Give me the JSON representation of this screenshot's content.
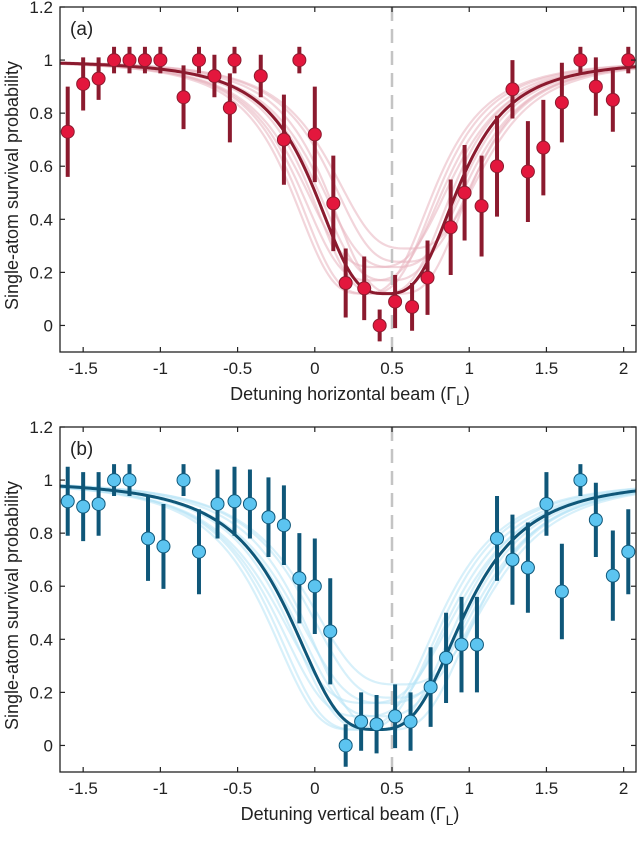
{
  "chart_data": [
    {
      "type": "scatter",
      "panel_label": "(a)",
      "xlabel": "Detuning horizontal beam (",
      "xlabel_symbol": "Γ",
      "xlabel_sub": "L",
      "xlabel_close": ")",
      "ylabel": "Single-atom survival probability",
      "xlim": [
        -1.65,
        2.08
      ],
      "ylim": [
        -0.1,
        1.2
      ],
      "xticks": [
        -1.5,
        -1,
        -0.5,
        0,
        0.5,
        1,
        1.5,
        2
      ],
      "xtick_labels": [
        "-1.5",
        "-1",
        "-0.5",
        "0",
        "0.5",
        "1",
        "1.5",
        "2"
      ],
      "yticks": [
        0,
        0.2,
        0.4,
        0.6,
        0.8,
        1,
        1.2
      ],
      "ytick_labels": [
        "0",
        "0.2",
        "0.4",
        "0.6",
        "0.8",
        "1",
        "1.2"
      ],
      "vline_x": 0.5,
      "colors": {
        "line": "#8b1a2e",
        "marker": "#e3173d",
        "marker_edge": "#8b1a2e",
        "band": "#e8b3bd"
      },
      "fit": {
        "model": "lorentzian-like dip",
        "center": 0.46,
        "width": 0.5,
        "floor": 0.12,
        "top": 1.0,
        "power": 3
      },
      "points": [
        {
          "x": -1.6,
          "y": 0.73,
          "err": 0.17
        },
        {
          "x": -1.5,
          "y": 0.91,
          "err": 0.1
        },
        {
          "x": -1.4,
          "y": 0.93,
          "err": 0.08
        },
        {
          "x": -1.3,
          "y": 1.0,
          "err": 0.05
        },
        {
          "x": -1.2,
          "y": 1.0,
          "err": 0.05
        },
        {
          "x": -1.1,
          "y": 1.0,
          "err": 0.05
        },
        {
          "x": -1.0,
          "y": 1.0,
          "err": 0.05
        },
        {
          "x": -0.85,
          "y": 0.86,
          "err": 0.12
        },
        {
          "x": -0.75,
          "y": 1.0,
          "err": 0.05
        },
        {
          "x": -0.65,
          "y": 0.94,
          "err": 0.08
        },
        {
          "x": -0.55,
          "y": 0.82,
          "err": 0.13
        },
        {
          "x": -0.52,
          "y": 1.0,
          "err": 0.05
        },
        {
          "x": -0.35,
          "y": 0.94,
          "err": 0.08
        },
        {
          "x": -0.2,
          "y": 0.7,
          "err": 0.17
        },
        {
          "x": -0.1,
          "y": 1.0,
          "err": 0.05
        },
        {
          "x": 0.0,
          "y": 0.72,
          "err": 0.18
        },
        {
          "x": 0.12,
          "y": 0.46,
          "err": 0.18
        },
        {
          "x": 0.2,
          "y": 0.16,
          "err": 0.13
        },
        {
          "x": 0.32,
          "y": 0.14,
          "err": 0.12
        },
        {
          "x": 0.42,
          "y": 0.0,
          "err": 0.06
        },
        {
          "x": 0.52,
          "y": 0.09,
          "err": 0.1
        },
        {
          "x": 0.63,
          "y": 0.07,
          "err": 0.09
        },
        {
          "x": 0.73,
          "y": 0.18,
          "err": 0.14
        },
        {
          "x": 0.88,
          "y": 0.37,
          "err": 0.18
        },
        {
          "x": 0.97,
          "y": 0.5,
          "err": 0.18
        },
        {
          "x": 1.08,
          "y": 0.45,
          "err": 0.19
        },
        {
          "x": 1.18,
          "y": 0.6,
          "err": 0.19
        },
        {
          "x": 1.28,
          "y": 0.89,
          "err": 0.11
        },
        {
          "x": 1.38,
          "y": 0.58,
          "err": 0.19
        },
        {
          "x": 1.48,
          "y": 0.67,
          "err": 0.18
        },
        {
          "x": 1.6,
          "y": 0.84,
          "err": 0.15
        },
        {
          "x": 1.72,
          "y": 1.0,
          "err": 0.05
        },
        {
          "x": 1.82,
          "y": 0.9,
          "err": 0.11
        },
        {
          "x": 1.93,
          "y": 0.85,
          "err": 0.12
        },
        {
          "x": 2.03,
          "y": 1.0,
          "err": 0.05
        }
      ]
    },
    {
      "type": "scatter",
      "panel_label": "(b)",
      "xlabel": "Detuning vertical beam (",
      "xlabel_symbol": "Γ",
      "xlabel_sub": "L",
      "xlabel_close": ")",
      "ylabel": "Single-atom survival probability",
      "xlim": [
        -1.65,
        2.08
      ],
      "ylim": [
        -0.1,
        1.2
      ],
      "xticks": [
        -1.5,
        -1,
        -0.5,
        0,
        0.5,
        1,
        1.5,
        2
      ],
      "xtick_labels": [
        "-1.5",
        "-1",
        "-0.5",
        "0",
        "0.5",
        "1",
        "1.5",
        "2"
      ],
      "yticks": [
        0,
        0.2,
        0.4,
        0.6,
        0.8,
        1,
        1.2
      ],
      "ytick_labels": [
        "0",
        "0.2",
        "0.4",
        "0.6",
        "0.8",
        "1",
        "1.2"
      ],
      "vline_x": 0.5,
      "colors": {
        "line": "#0f5779",
        "marker": "#5cc4f0",
        "marker_edge": "#0f5779",
        "band": "#b7e3f6"
      },
      "fit": {
        "model": "lorentzian-like dip",
        "center": 0.4,
        "width": 0.6,
        "floor": 0.06,
        "top": 1.0,
        "power": 3
      },
      "points": [
        {
          "x": -1.6,
          "y": 0.92,
          "err": 0.13
        },
        {
          "x": -1.5,
          "y": 0.9,
          "err": 0.13
        },
        {
          "x": -1.4,
          "y": 0.91,
          "err": 0.12
        },
        {
          "x": -1.3,
          "y": 1.0,
          "err": 0.06
        },
        {
          "x": -1.2,
          "y": 1.0,
          "err": 0.06
        },
        {
          "x": -1.08,
          "y": 0.78,
          "err": 0.16
        },
        {
          "x": -0.98,
          "y": 0.75,
          "err": 0.16
        },
        {
          "x": -0.85,
          "y": 1.0,
          "err": 0.06
        },
        {
          "x": -0.75,
          "y": 0.73,
          "err": 0.16
        },
        {
          "x": -0.63,
          "y": 0.91,
          "err": 0.13
        },
        {
          "x": -0.52,
          "y": 0.92,
          "err": 0.13
        },
        {
          "x": -0.42,
          "y": 0.91,
          "err": 0.13
        },
        {
          "x": -0.3,
          "y": 0.86,
          "err": 0.15
        },
        {
          "x": -0.2,
          "y": 0.83,
          "err": 0.15
        },
        {
          "x": -0.1,
          "y": 0.63,
          "err": 0.17
        },
        {
          "x": 0.0,
          "y": 0.6,
          "err": 0.18
        },
        {
          "x": 0.1,
          "y": 0.43,
          "err": 0.2
        },
        {
          "x": 0.2,
          "y": 0.0,
          "err": 0.08
        },
        {
          "x": 0.3,
          "y": 0.09,
          "err": 0.11
        },
        {
          "x": 0.4,
          "y": 0.08,
          "err": 0.11
        },
        {
          "x": 0.52,
          "y": 0.11,
          "err": 0.12
        },
        {
          "x": 0.62,
          "y": 0.09,
          "err": 0.11
        },
        {
          "x": 0.75,
          "y": 0.22,
          "err": 0.15
        },
        {
          "x": 0.85,
          "y": 0.33,
          "err": 0.17
        },
        {
          "x": 0.95,
          "y": 0.38,
          "err": 0.18
        },
        {
          "x": 1.05,
          "y": 0.38,
          "err": 0.18
        },
        {
          "x": 1.18,
          "y": 0.78,
          "err": 0.16
        },
        {
          "x": 1.28,
          "y": 0.7,
          "err": 0.17
        },
        {
          "x": 1.38,
          "y": 0.67,
          "err": 0.17
        },
        {
          "x": 1.5,
          "y": 0.91,
          "err": 0.12
        },
        {
          "x": 1.6,
          "y": 0.58,
          "err": 0.18
        },
        {
          "x": 1.72,
          "y": 1.0,
          "err": 0.06
        },
        {
          "x": 1.82,
          "y": 0.85,
          "err": 0.14
        },
        {
          "x": 1.93,
          "y": 0.64,
          "err": 0.17
        },
        {
          "x": 2.03,
          "y": 0.73,
          "err": 0.16
        }
      ]
    }
  ]
}
